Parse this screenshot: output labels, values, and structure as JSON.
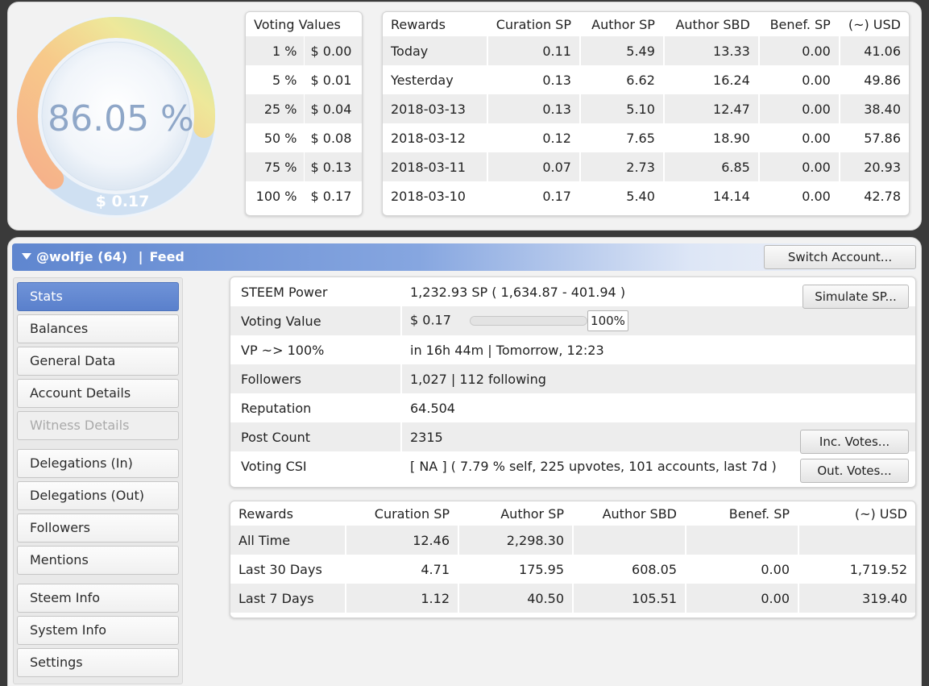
{
  "gauge": {
    "percent_text": "86.05 %",
    "value_text": "$ 0.17",
    "level": 0.8605
  },
  "voting_values": {
    "header": "Voting Values",
    "rows": [
      {
        "pct": "1 %",
        "usd": "$ 0.00"
      },
      {
        "pct": "5 %",
        "usd": "$ 0.01"
      },
      {
        "pct": "25 %",
        "usd": "$ 0.04"
      },
      {
        "pct": "50 %",
        "usd": "$ 0.08"
      },
      {
        "pct": "75 %",
        "usd": "$ 0.13"
      },
      {
        "pct": "100 %",
        "usd": "$ 0.17"
      }
    ]
  },
  "rewards": {
    "headers": [
      "Rewards",
      "Curation SP",
      "Author SP",
      "Author SBD",
      "Benef. SP",
      "(~) USD"
    ],
    "rows": [
      [
        "Today",
        "0.11",
        "5.49",
        "13.33",
        "0.00",
        "41.06"
      ],
      [
        "Yesterday",
        "0.13",
        "6.62",
        "16.24",
        "0.00",
        "49.86"
      ],
      [
        "2018-03-13",
        "0.13",
        "5.10",
        "12.47",
        "0.00",
        "38.40"
      ],
      [
        "2018-03-12",
        "0.12",
        "7.65",
        "18.90",
        "0.00",
        "57.86"
      ],
      [
        "2018-03-11",
        "0.07",
        "2.73",
        "6.85",
        "0.00",
        "20.93"
      ],
      [
        "2018-03-10",
        "0.17",
        "5.40",
        "14.14",
        "0.00",
        "42.78"
      ]
    ]
  },
  "account_bar": {
    "account": "@wolfje (64)",
    "separator": "|",
    "section": "Feed",
    "switch_label": "Switch Account..."
  },
  "sidebar": {
    "items": [
      {
        "label": "Stats",
        "state": "active"
      },
      {
        "label": "Balances",
        "state": "normal"
      },
      {
        "label": "General Data",
        "state": "normal"
      },
      {
        "label": "Account Details",
        "state": "normal"
      },
      {
        "label": "Witness Details",
        "state": "disabled"
      },
      {
        "label": "Delegations (In)",
        "state": "normal"
      },
      {
        "label": "Delegations (Out)",
        "state": "normal"
      },
      {
        "label": "Followers",
        "state": "normal"
      },
      {
        "label": "Mentions",
        "state": "normal"
      },
      {
        "label": "Steem Info",
        "state": "normal"
      },
      {
        "label": "System Info",
        "state": "normal"
      },
      {
        "label": "Settings",
        "state": "normal"
      }
    ]
  },
  "stats": {
    "steem_power": {
      "label": "STEEM Power",
      "value": "1,232.93 SP ( 1,634.87 - 401.94 )",
      "button": "Simulate SP..."
    },
    "voting_value": {
      "label": "Voting Value",
      "value": "$ 0.17",
      "weight": "100%",
      "level": 1.0
    },
    "vp": {
      "label": "VP ~> 100%",
      "value": "in 16h 44m | Tomorrow, 12:23"
    },
    "followers": {
      "label": "Followers",
      "value": "1,027 | 112 following"
    },
    "reputation": {
      "label": "Reputation",
      "value": "64.504"
    },
    "post_count": {
      "label": "Post Count",
      "value": "2315",
      "button": "Inc. Votes..."
    },
    "voting_csi": {
      "label": "Voting CSI",
      "value": "[ NA ] ( 7.79 % self, 225 upvotes, 101 accounts, last 7d )",
      "button": "Out. Votes..."
    }
  },
  "summary": {
    "headers": [
      "Rewards",
      "Curation SP",
      "Author SP",
      "Author SBD",
      "Benef. SP",
      "(~) USD"
    ],
    "rows": [
      [
        "All Time",
        "12.46",
        "2,298.30",
        "",
        "",
        ""
      ],
      [
        "Last 30 Days",
        "4.71",
        "175.95",
        "608.05",
        "0.00",
        "1,719.52"
      ],
      [
        "Last 7 Days",
        "1.12",
        "40.50",
        "105.51",
        "0.00",
        "319.40"
      ]
    ]
  },
  "colors": {
    "accent": "#5f86cf",
    "gauge_text": "#8fa7c8"
  }
}
